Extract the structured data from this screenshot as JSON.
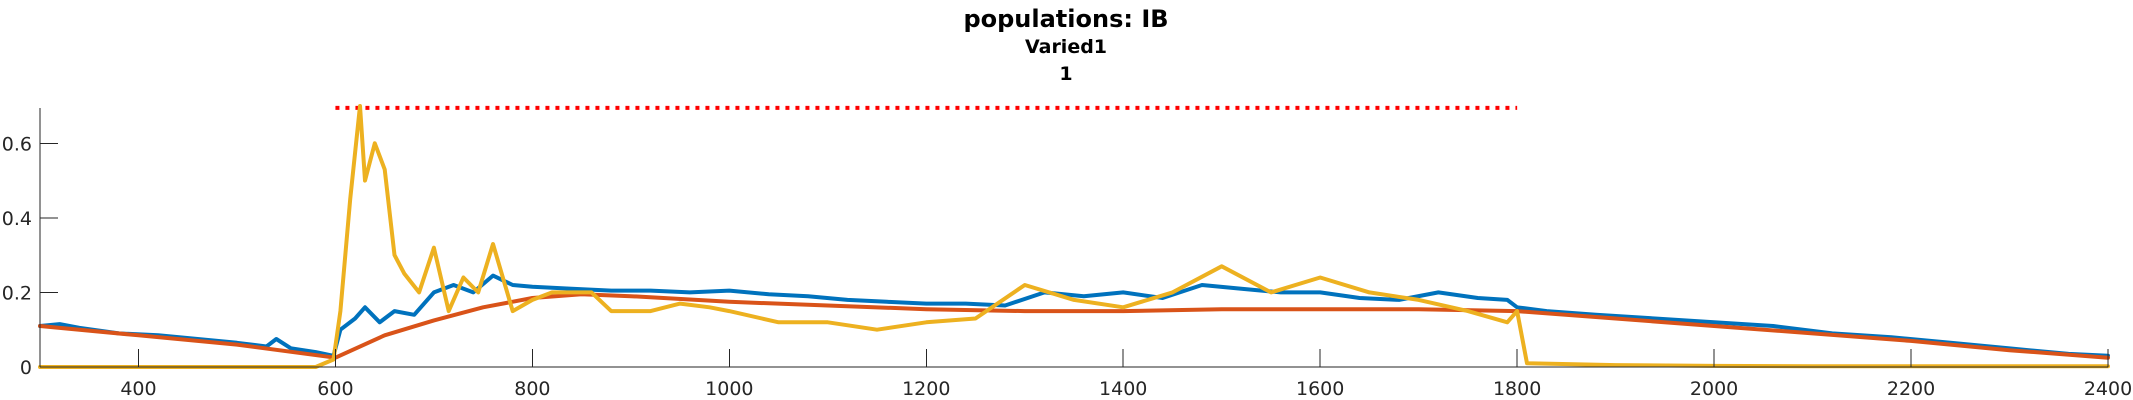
{
  "chart_data": {
    "type": "line",
    "title": "populations: IB",
    "subtitle_1": "Varied1",
    "subtitle_2": "1",
    "xlabel": "",
    "ylabel": "",
    "xlim": [
      300,
      2400
    ],
    "ylim": [
      0,
      0.7
    ],
    "xticks": [
      400,
      600,
      800,
      1000,
      1200,
      1400,
      1600,
      1800,
      2000,
      2200,
      2400
    ],
    "yticks": [
      0,
      0.2,
      0.4,
      0.6
    ],
    "ytick_labels": [
      "0",
      "0.2",
      "0.4",
      "0.6"
    ],
    "grid": false,
    "stimulus_line": {
      "x": [
        600,
        1800
      ],
      "y": 0.695,
      "color": "#ff0000",
      "style": "dotted"
    },
    "series": [
      {
        "color": "#0072bd",
        "x": [
          300,
          320,
          340,
          380,
          420,
          460,
          500,
          530,
          540,
          555,
          580,
          598,
          605,
          620,
          630,
          645,
          660,
          680,
          700,
          720,
          740,
          760,
          780,
          800,
          840,
          880,
          920,
          960,
          1000,
          1040,
          1080,
          1120,
          1160,
          1200,
          1240,
          1280,
          1320,
          1360,
          1400,
          1440,
          1480,
          1520,
          1560,
          1600,
          1640,
          1680,
          1720,
          1760,
          1790,
          1800,
          1830,
          1880,
          1940,
          2000,
          2060,
          2120,
          2180,
          2240,
          2300,
          2360,
          2400
        ],
        "y": [
          0.11,
          0.115,
          0.105,
          0.09,
          0.085,
          0.075,
          0.065,
          0.055,
          0.075,
          0.05,
          0.04,
          0.03,
          0.1,
          0.13,
          0.16,
          0.12,
          0.15,
          0.14,
          0.2,
          0.22,
          0.2,
          0.245,
          0.22,
          0.215,
          0.21,
          0.205,
          0.205,
          0.2,
          0.205,
          0.195,
          0.19,
          0.18,
          0.175,
          0.17,
          0.17,
          0.165,
          0.2,
          0.19,
          0.2,
          0.185,
          0.22,
          0.21,
          0.2,
          0.2,
          0.185,
          0.18,
          0.2,
          0.185,
          0.18,
          0.16,
          0.15,
          0.14,
          0.13,
          0.12,
          0.11,
          0.09,
          0.08,
          0.065,
          0.05,
          0.035,
          0.03
        ]
      },
      {
        "color": "#d95319",
        "x": [
          300,
          400,
          500,
          600,
          650,
          700,
          750,
          800,
          850,
          900,
          1000,
          1100,
          1200,
          1300,
          1400,
          1500,
          1600,
          1700,
          1800,
          1900,
          2000,
          2100,
          2200,
          2300,
          2400
        ],
        "y": [
          0.11,
          0.085,
          0.06,
          0.025,
          0.085,
          0.125,
          0.16,
          0.185,
          0.195,
          0.19,
          0.175,
          0.165,
          0.155,
          0.15,
          0.15,
          0.155,
          0.155,
          0.155,
          0.15,
          0.13,
          0.11,
          0.09,
          0.07,
          0.045,
          0.025
        ]
      },
      {
        "color": "#edb120",
        "x": [
          300,
          400,
          500,
          580,
          598,
          605,
          615,
          625,
          630,
          640,
          650,
          660,
          670,
          685,
          700,
          715,
          730,
          745,
          760,
          780,
          800,
          820,
          840,
          860,
          880,
          900,
          920,
          950,
          980,
          1000,
          1050,
          1100,
          1150,
          1200,
          1250,
          1300,
          1350,
          1400,
          1450,
          1500,
          1550,
          1600,
          1650,
          1700,
          1750,
          1790,
          1800,
          1810,
          1900,
          2000,
          2100,
          2200,
          2300,
          2400
        ],
        "y": [
          0,
          0,
          0,
          0,
          0.02,
          0.15,
          0.45,
          0.7,
          0.5,
          0.6,
          0.53,
          0.3,
          0.25,
          0.2,
          0.32,
          0.15,
          0.24,
          0.2,
          0.33,
          0.15,
          0.18,
          0.2,
          0.2,
          0.2,
          0.15,
          0.15,
          0.15,
          0.17,
          0.16,
          0.15,
          0.12,
          0.12,
          0.1,
          0.12,
          0.13,
          0.22,
          0.18,
          0.16,
          0.2,
          0.27,
          0.2,
          0.24,
          0.2,
          0.18,
          0.15,
          0.12,
          0.15,
          0.01,
          0.005,
          0.003,
          0.002,
          0.002,
          0.002,
          0.002
        ]
      }
    ]
  }
}
